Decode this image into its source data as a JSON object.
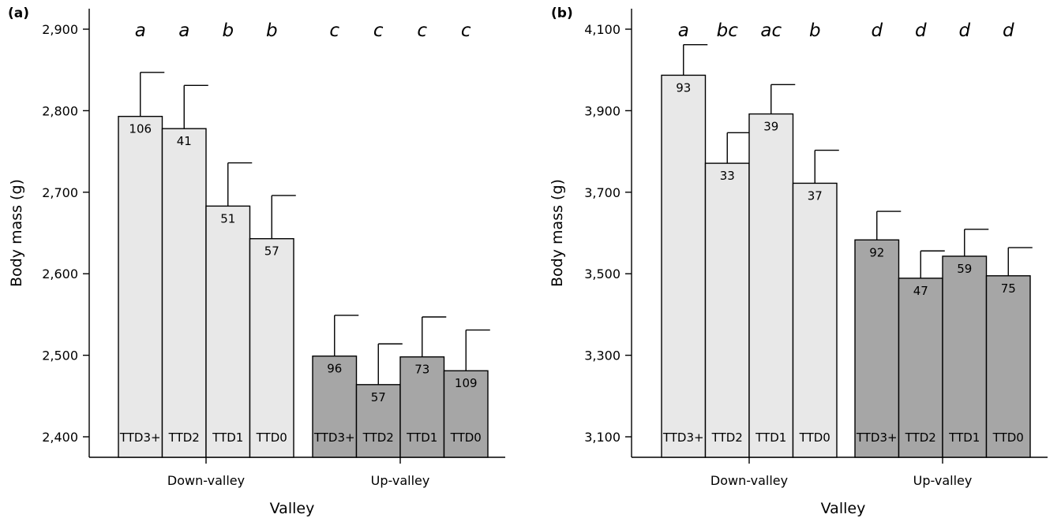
{
  "chart_data": [
    {
      "panel": "(a)",
      "type": "bar",
      "xlabel": "Valley",
      "ylabel": "Body mass (g)",
      "ylim": [
        2400,
        2900
      ],
      "yticks": [
        "2,400",
        "2,500",
        "2,600",
        "2,700",
        "2,800",
        "2,900"
      ],
      "ytick_values": [
        2400,
        2500,
        2600,
        2700,
        2800,
        2900
      ],
      "groups": [
        {
          "label": "Down-valley",
          "color": "#e8e8e8",
          "bars": [
            {
              "category": "TTD3+",
              "value": 2793,
              "error": 54,
              "n": "106",
              "letter": "a"
            },
            {
              "category": "TTD2",
              "value": 2778,
              "error": 53,
              "n": "41",
              "letter": "a"
            },
            {
              "category": "TTD1",
              "value": 2683,
              "error": 53,
              "n": "51",
              "letter": "b"
            },
            {
              "category": "TTD0",
              "value": 2643,
              "error": 53,
              "n": "57",
              "letter": "b"
            }
          ]
        },
        {
          "label": "Up-valley",
          "color": "#a6a6a6",
          "bars": [
            {
              "category": "TTD3+",
              "value": 2499,
              "error": 50,
              "n": "96",
              "letter": "c"
            },
            {
              "category": "TTD2",
              "value": 2464,
              "error": 50,
              "n": "57",
              "letter": "c"
            },
            {
              "category": "TTD1",
              "value": 2498,
              "error": 49,
              "n": "73",
              "letter": "c"
            },
            {
              "category": "TTD0",
              "value": 2481,
              "error": 50,
              "n": "109",
              "letter": "c"
            }
          ]
        }
      ]
    },
    {
      "panel": "(b)",
      "type": "bar",
      "xlabel": "Valley",
      "ylabel": "Body mass (g)",
      "ylim": [
        3100,
        4100
      ],
      "yticks": [
        "3,100",
        "3,300",
        "3,500",
        "3,700",
        "3,900",
        "4,100"
      ],
      "ytick_values": [
        3100,
        3300,
        3500,
        3700,
        3900,
        4100
      ],
      "groups": [
        {
          "label": "Down-valley",
          "color": "#e8e8e8",
          "bars": [
            {
              "category": "TTD3+",
              "value": 3987,
              "error": 75,
              "n": "93",
              "letter": "a"
            },
            {
              "category": "TTD2",
              "value": 3771,
              "error": 75,
              "n": "33",
              "letter": "bc"
            },
            {
              "category": "TTD1",
              "value": 3892,
              "error": 72,
              "n": "39",
              "letter": "ac"
            },
            {
              "category": "TTD0",
              "value": 3722,
              "error": 81,
              "n": "37",
              "letter": "b"
            }
          ]
        },
        {
          "label": "Up-valley",
          "color": "#a6a6a6",
          "bars": [
            {
              "category": "TTD3+",
              "value": 3583,
              "error": 70,
              "n": "92",
              "letter": "d"
            },
            {
              "category": "TTD2",
              "value": 3489,
              "error": 67,
              "n": "47",
              "letter": "d"
            },
            {
              "category": "TTD1",
              "value": 3543,
              "error": 66,
              "n": "59",
              "letter": "d"
            },
            {
              "category": "TTD0",
              "value": 3495,
              "error": 69,
              "n": "75",
              "letter": "d"
            }
          ]
        }
      ]
    }
  ]
}
